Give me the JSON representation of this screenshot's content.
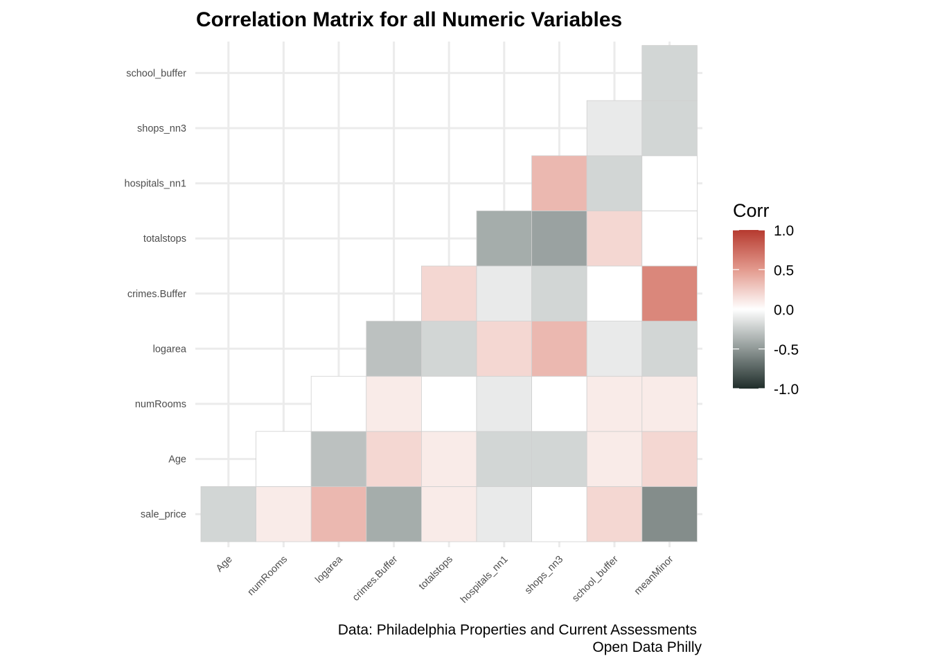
{
  "chart_data": {
    "type": "heatmap",
    "title": "Correlation Matrix for all Numeric Variables",
    "xlabel": "",
    "ylabel": "",
    "x_categories": [
      "Age",
      "numRooms",
      "logarea",
      "crimes.Buffer",
      "totalstops",
      "hospitals_nn1",
      "shops_nn3",
      "school_buffer",
      "meanMinor"
    ],
    "y_categories": [
      "sale_price",
      "Age",
      "numRooms",
      "logarea",
      "crimes.Buffer",
      "totalstops",
      "hospitals_nn1",
      "shops_nn3",
      "school_buffer"
    ],
    "matrix": [
      [
        -0.2,
        0.1,
        0.35,
        -0.4,
        0.1,
        -0.1,
        0.0,
        0.2,
        -0.55
      ],
      [
        null,
        0.0,
        -0.3,
        0.2,
        0.1,
        -0.2,
        -0.2,
        0.1,
        0.2
      ],
      [
        null,
        null,
        0.0,
        0.1,
        0.0,
        -0.1,
        0.0,
        0.1,
        0.1
      ],
      [
        null,
        null,
        null,
        -0.3,
        -0.2,
        0.2,
        0.35,
        -0.1,
        -0.2
      ],
      [
        null,
        null,
        null,
        null,
        0.2,
        -0.1,
        -0.2,
        0.0,
        0.6
      ],
      [
        null,
        null,
        null,
        null,
        null,
        -0.4,
        -0.45,
        0.2,
        0.0
      ],
      [
        null,
        null,
        null,
        null,
        null,
        null,
        0.35,
        -0.2,
        0.0
      ],
      [
        null,
        null,
        null,
        null,
        null,
        null,
        null,
        -0.1,
        -0.2
      ],
      [
        null,
        null,
        null,
        null,
        null,
        null,
        null,
        null,
        -0.2
      ]
    ],
    "colorscale": {
      "low": "#1f2d2a",
      "mid": "#ffffff",
      "high": "#b63a2f",
      "limits": [
        -1,
        1
      ]
    },
    "legend": {
      "title": "Corr",
      "ticks": [
        "1.0",
        "0.5",
        "0.0",
        "-0.5",
        "-1.0"
      ],
      "placement": "right"
    },
    "grid": true,
    "caption": [
      "Data: Philadelphia Properties and Current Assessments",
      "Open Data Philly"
    ]
  }
}
